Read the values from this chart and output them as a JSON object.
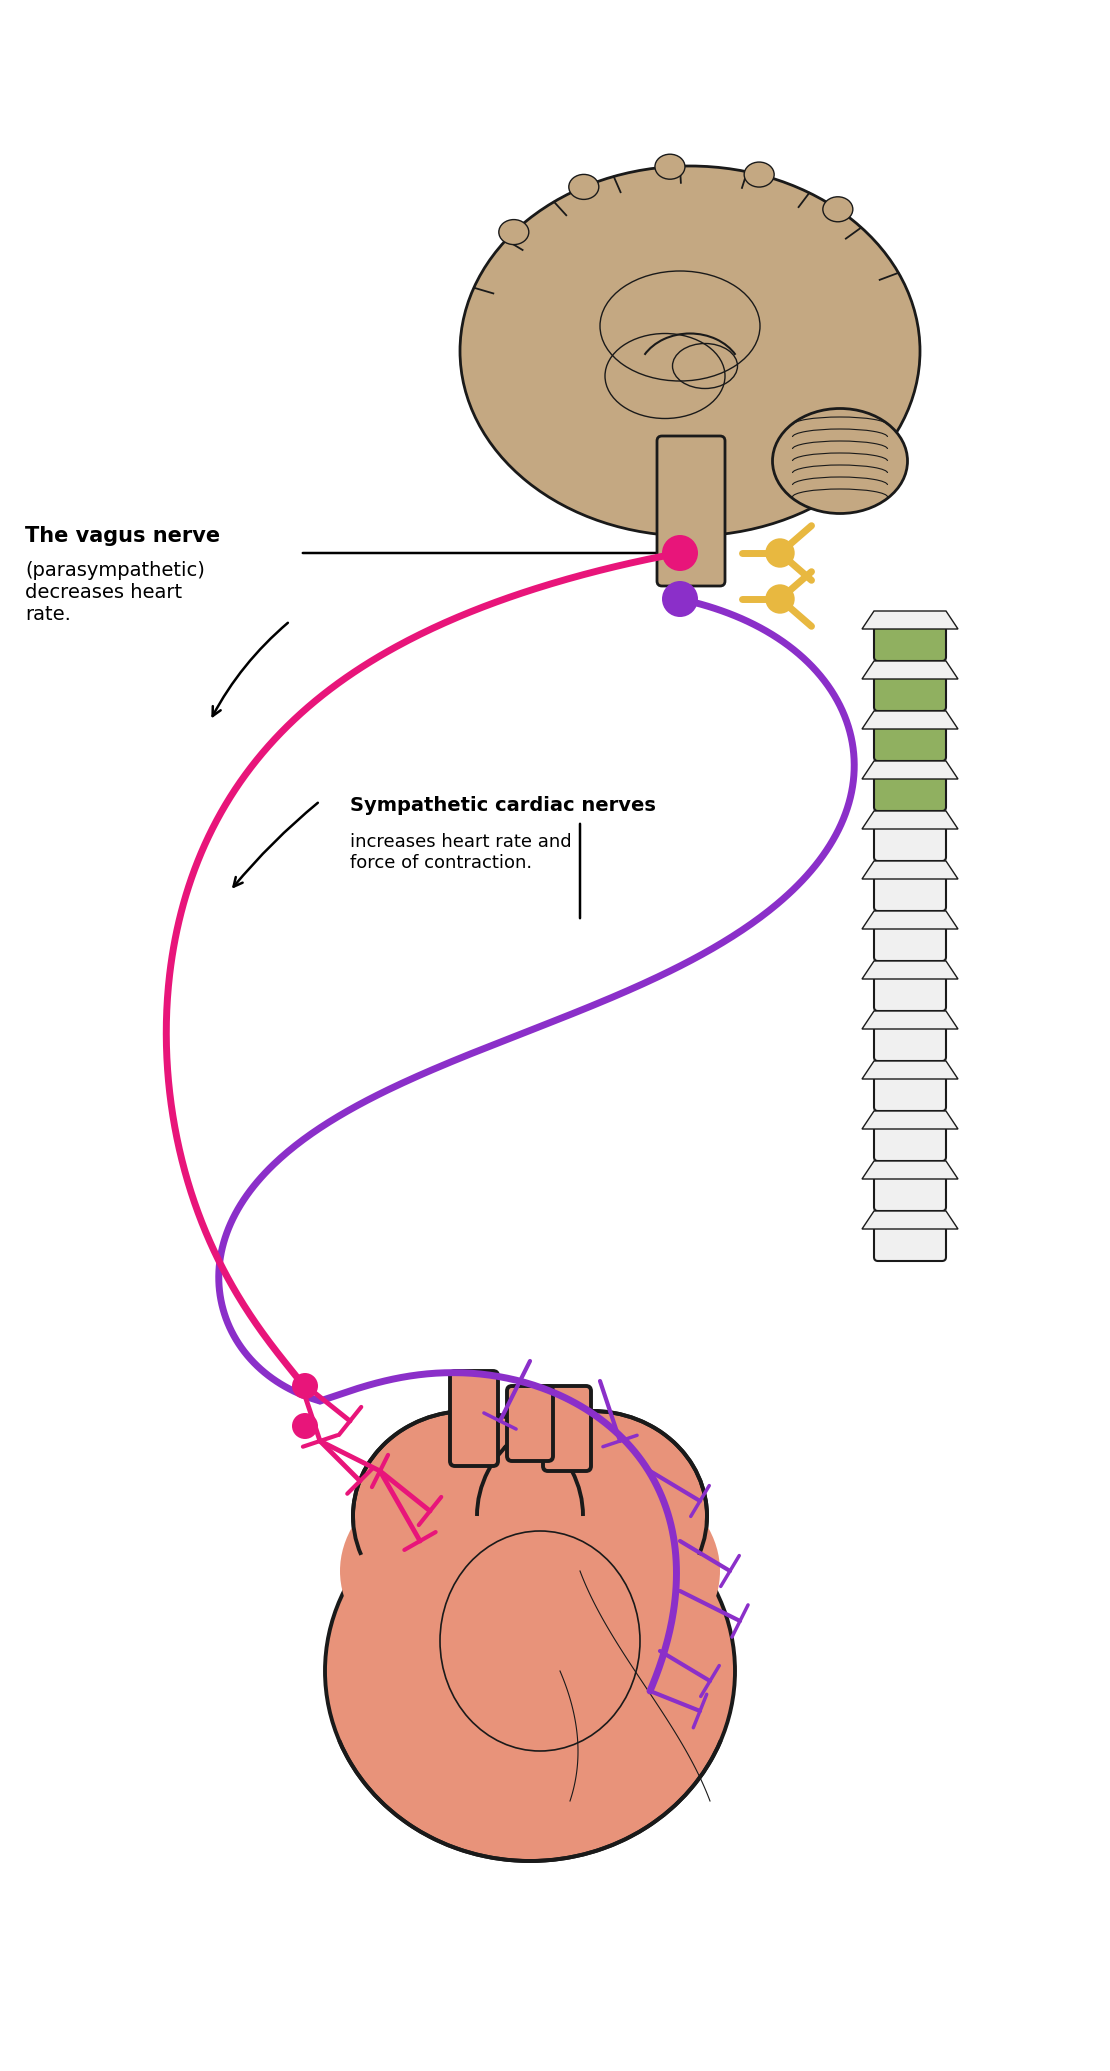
{
  "bg_color": "#ffffff",
  "vagus_color": "#E8157A",
  "sympathetic_color": "#8B2FC9",
  "brain_fill": "#C4A882",
  "brain_stroke": "#1a1a1a",
  "heart_fill": "#E8937A",
  "heart_stroke": "#1a1a1a",
  "spine_fill": "#90B060",
  "spine_white": "#f0f0f0",
  "neuron_gold": "#E8B840",
  "vagus_label_bold": "The vagus nerve",
  "vagus_label_normal": "(parasympathetic)\ndecreases heart\nrate.",
  "sympathetic_label_bold": "Sympathetic cardiac nerves",
  "sympathetic_label_normal": "increases heart rate and\nforce of contraction.",
  "figsize": [
    11.1,
    20.71
  ],
  "dpi": 100
}
